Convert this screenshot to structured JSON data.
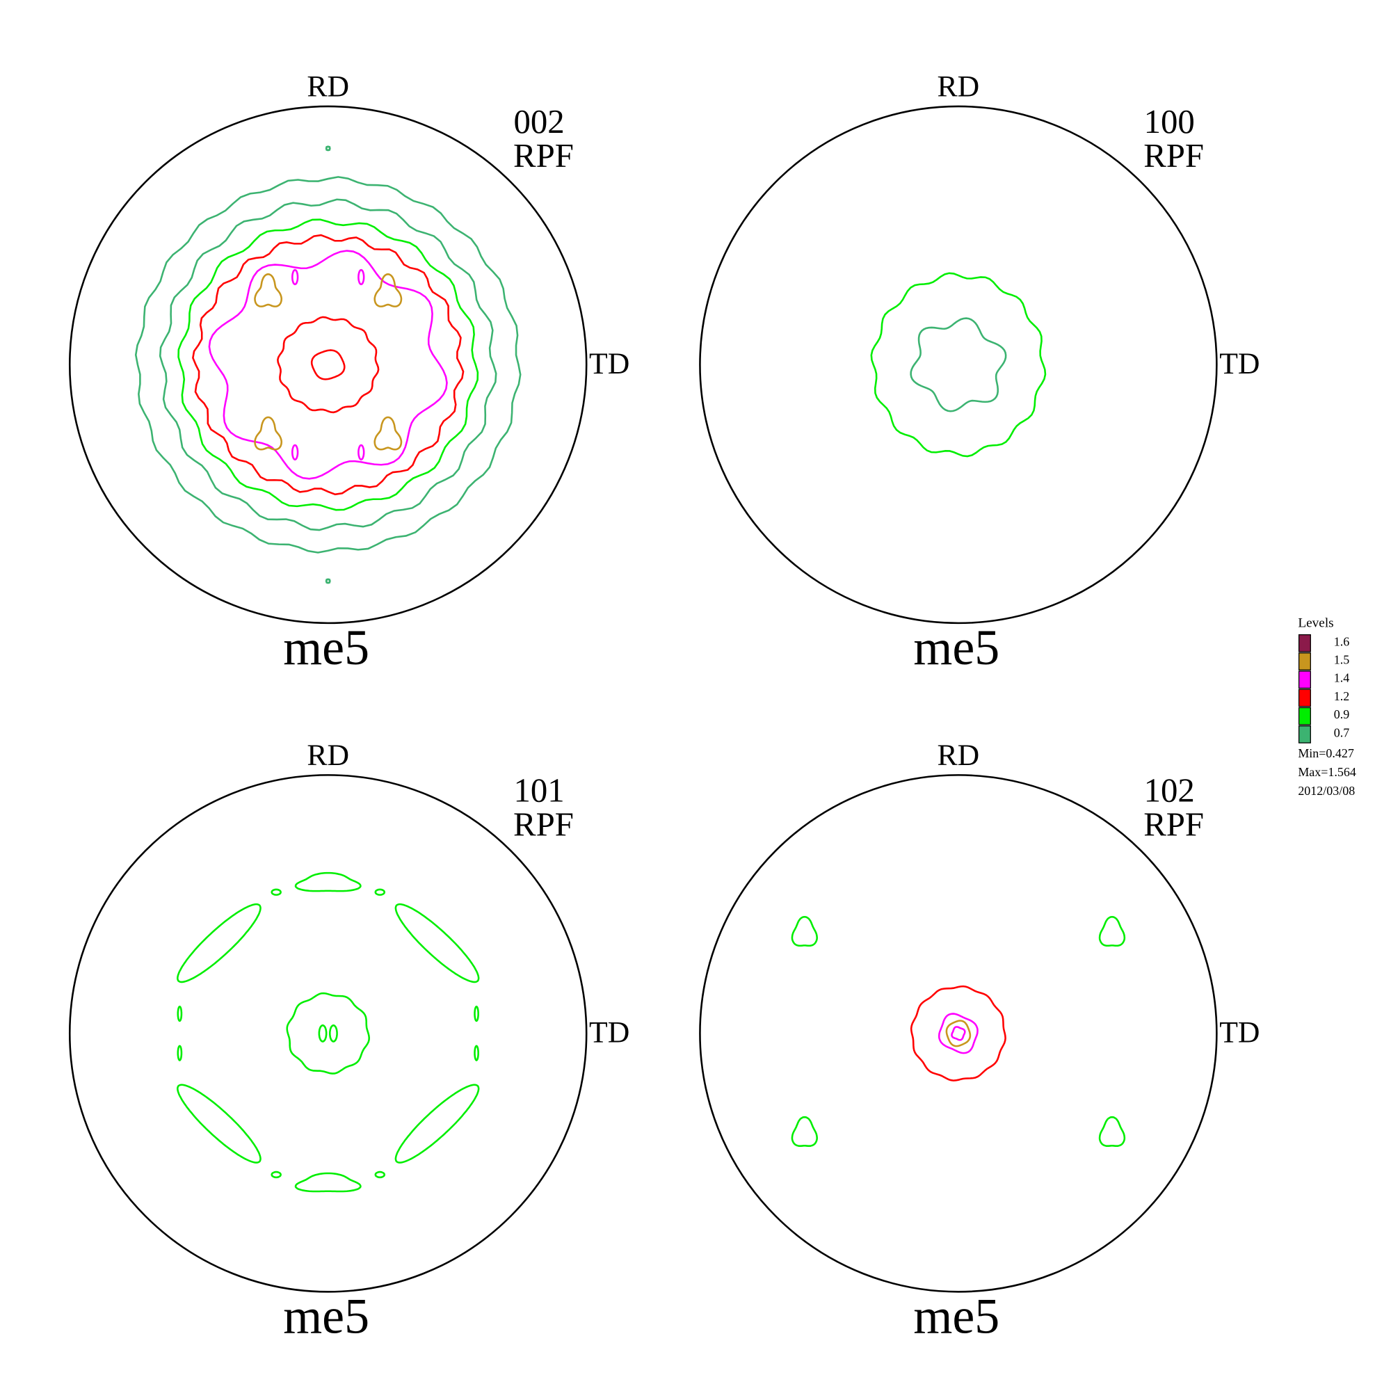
{
  "panels": [
    {
      "rd": "RD",
      "td": "TD",
      "label": "002",
      "mode": "RPF",
      "sample": "me5"
    },
    {
      "rd": "RD",
      "td": "TD",
      "label": "100",
      "mode": "RPF",
      "sample": "me5"
    },
    {
      "rd": "RD",
      "td": "TD",
      "label": "101",
      "mode": "RPF",
      "sample": "me5"
    },
    {
      "rd": "RD",
      "td": "TD",
      "label": "102",
      "mode": "RPF",
      "sample": "me5"
    }
  ],
  "legend": {
    "title": "Levels",
    "levels": [
      {
        "value": 1.6,
        "color": "#8b1a4a"
      },
      {
        "value": 1.5,
        "color": "#c8961e"
      },
      {
        "value": 1.4,
        "color": "#ff00ff"
      },
      {
        "value": 1.2,
        "color": "#ff0000"
      },
      {
        "value": 0.9,
        "color": "#00ee00"
      },
      {
        "value": 0.7,
        "color": "#3cb371"
      }
    ],
    "min": "Min=0.427",
    "max": "Max=1.564",
    "date": "2012/03/08"
  }
}
